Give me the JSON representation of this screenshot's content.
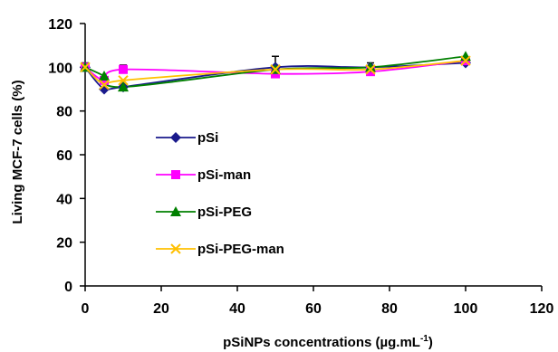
{
  "chart_data": {
    "type": "line",
    "title": "",
    "xlabel": "pSiNPs concentrations (µg.mL",
    "xlabel_sup": "-1",
    "xlabel_close": ")",
    "ylabel": "Living MCF-7 cells (%)",
    "xlim": [
      0,
      120
    ],
    "ylim": [
      0,
      120
    ],
    "x_ticks": [
      "0",
      "20",
      "40",
      "60",
      "80",
      "100",
      "120"
    ],
    "y_ticks": [
      "0",
      "20",
      "40",
      "60",
      "80",
      "100",
      "120"
    ],
    "grid": false,
    "legend_position": "center-left",
    "x": [
      0,
      5,
      10,
      50,
      75,
      100
    ],
    "series": [
      {
        "name": "pSi",
        "color": "#1a1a8c",
        "marker": "diamond",
        "values": [
          100,
          90,
          91,
          100,
          100,
          102
        ],
        "error": [
          2,
          0,
          0,
          5,
          2,
          0
        ]
      },
      {
        "name": "pSi-man",
        "color": "#ff00ff",
        "marker": "square",
        "values": [
          100,
          94,
          99,
          97,
          98,
          103
        ],
        "error": [
          0,
          0,
          2,
          0,
          0,
          0
        ]
      },
      {
        "name": "pSi-PEG",
        "color": "#008000",
        "marker": "triangle",
        "values": [
          100,
          96,
          91,
          99,
          100,
          105
        ],
        "error": [
          0,
          0,
          0,
          0,
          0,
          0
        ]
      },
      {
        "name": "pSi-PEG-man",
        "color": "#ffc000",
        "marker": "x",
        "values": [
          100,
          92,
          94,
          99,
          99,
          103
        ],
        "error": [
          0,
          0,
          0,
          0,
          0,
          0
        ]
      }
    ]
  }
}
